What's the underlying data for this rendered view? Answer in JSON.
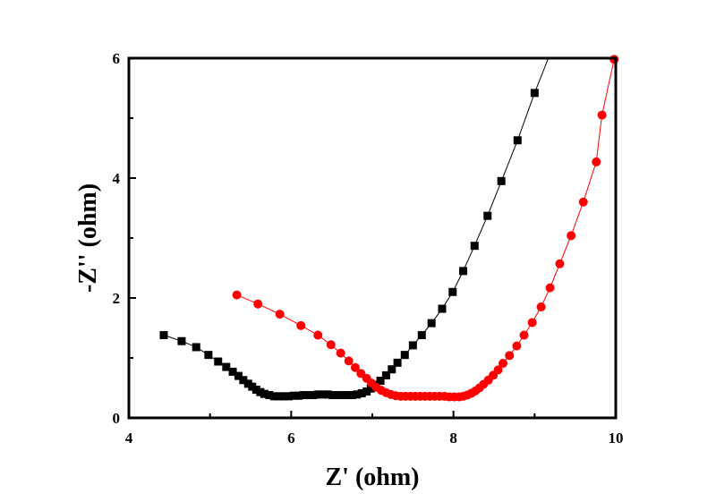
{
  "chart_data": {
    "type": "scatter",
    "title": "",
    "xlabel": "Z' (ohm)",
    "ylabel": "-Z'' (ohm)",
    "xlim": [
      4,
      10
    ],
    "ylim": [
      0,
      6
    ],
    "xticks": [
      4,
      6,
      8,
      10
    ],
    "yticks": [
      0,
      2,
      4,
      6
    ],
    "grid": false,
    "legend": "none",
    "series": [
      {
        "name": "black squares",
        "color": "#000000",
        "marker": "square",
        "line": true,
        "points": [
          [
            4.43,
            1.38
          ],
          [
            4.65,
            1.28
          ],
          [
            4.83,
            1.18
          ],
          [
            4.98,
            1.05
          ],
          [
            5.1,
            0.94
          ],
          [
            5.2,
            0.85
          ],
          [
            5.28,
            0.77
          ],
          [
            5.35,
            0.7
          ],
          [
            5.41,
            0.63
          ],
          [
            5.47,
            0.57
          ],
          [
            5.52,
            0.52
          ],
          [
            5.57,
            0.47
          ],
          [
            5.62,
            0.43
          ],
          [
            5.67,
            0.4
          ],
          [
            5.73,
            0.38
          ],
          [
            5.79,
            0.36
          ],
          [
            5.85,
            0.36
          ],
          [
            5.91,
            0.36
          ],
          [
            5.97,
            0.36
          ],
          [
            6.03,
            0.37
          ],
          [
            6.09,
            0.37
          ],
          [
            6.15,
            0.38
          ],
          [
            6.21,
            0.38
          ],
          [
            6.27,
            0.38
          ],
          [
            6.33,
            0.39
          ],
          [
            6.39,
            0.39
          ],
          [
            6.45,
            0.39
          ],
          [
            6.51,
            0.38
          ],
          [
            6.57,
            0.38
          ],
          [
            6.63,
            0.38
          ],
          [
            6.69,
            0.38
          ],
          [
            6.75,
            0.38
          ],
          [
            6.81,
            0.39
          ],
          [
            6.87,
            0.41
          ],
          [
            6.93,
            0.44
          ],
          [
            6.98,
            0.49
          ],
          [
            7.04,
            0.55
          ],
          [
            7.1,
            0.62
          ],
          [
            7.17,
            0.71
          ],
          [
            7.24,
            0.81
          ],
          [
            7.31,
            0.92
          ],
          [
            7.4,
            1.05
          ],
          [
            7.5,
            1.21
          ],
          [
            7.61,
            1.38
          ],
          [
            7.73,
            1.58
          ],
          [
            7.86,
            1.82
          ],
          [
            7.99,
            2.1
          ],
          [
            8.12,
            2.45
          ],
          [
            8.26,
            2.87
          ],
          [
            8.42,
            3.37
          ],
          [
            8.59,
            3.95
          ],
          [
            8.79,
            4.63
          ],
          [
            9.0,
            5.42
          ]
        ],
        "line_extends_to": [
          9.17,
          6.0
        ]
      },
      {
        "name": "red circles",
        "color": "#ff0000",
        "marker": "circle",
        "line": true,
        "points": [
          [
            5.33,
            2.05
          ],
          [
            5.59,
            1.9
          ],
          [
            5.86,
            1.73
          ],
          [
            6.12,
            1.54
          ],
          [
            6.33,
            1.38
          ],
          [
            6.49,
            1.22
          ],
          [
            6.61,
            1.08
          ],
          [
            6.71,
            0.95
          ],
          [
            6.79,
            0.84
          ],
          [
            6.86,
            0.74
          ],
          [
            6.93,
            0.66
          ],
          [
            6.99,
            0.58
          ],
          [
            7.05,
            0.51
          ],
          [
            7.11,
            0.46
          ],
          [
            7.17,
            0.42
          ],
          [
            7.23,
            0.39
          ],
          [
            7.29,
            0.37
          ],
          [
            7.35,
            0.36
          ],
          [
            7.41,
            0.36
          ],
          [
            7.47,
            0.36
          ],
          [
            7.53,
            0.36
          ],
          [
            7.59,
            0.36
          ],
          [
            7.65,
            0.36
          ],
          [
            7.71,
            0.36
          ],
          [
            7.77,
            0.36
          ],
          [
            7.83,
            0.36
          ],
          [
            7.89,
            0.36
          ],
          [
            7.95,
            0.35
          ],
          [
            8.01,
            0.35
          ],
          [
            8.07,
            0.35
          ],
          [
            8.12,
            0.36
          ],
          [
            8.17,
            0.38
          ],
          [
            8.22,
            0.41
          ],
          [
            8.27,
            0.45
          ],
          [
            8.32,
            0.5
          ],
          [
            8.37,
            0.56
          ],
          [
            8.43,
            0.63
          ],
          [
            8.49,
            0.71
          ],
          [
            8.55,
            0.8
          ],
          [
            8.61,
            0.91
          ],
          [
            8.69,
            1.04
          ],
          [
            8.78,
            1.2
          ],
          [
            8.87,
            1.38
          ],
          [
            8.97,
            1.59
          ],
          [
            9.08,
            1.85
          ],
          [
            9.19,
            2.17
          ],
          [
            9.31,
            2.57
          ],
          [
            9.45,
            3.04
          ],
          [
            9.6,
            3.6
          ],
          [
            9.76,
            4.27
          ],
          [
            9.83,
            5.05
          ],
          [
            9.98,
            5.98
          ]
        ]
      }
    ]
  }
}
